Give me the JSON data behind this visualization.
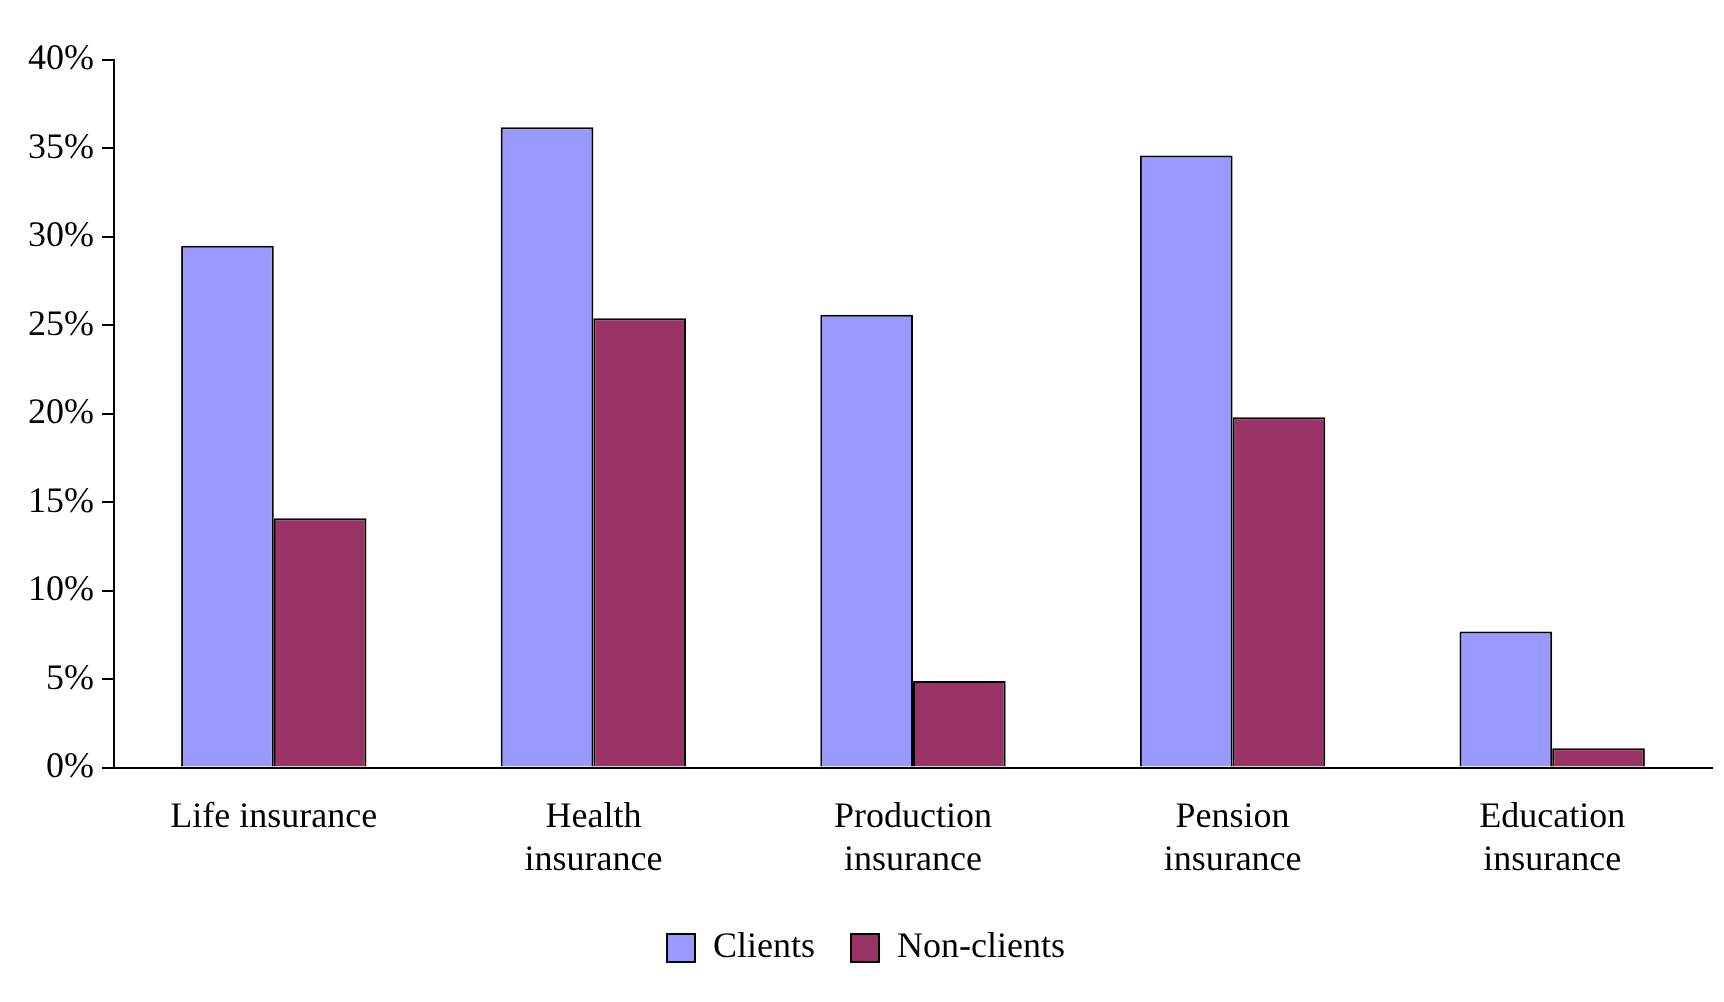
{
  "chart_data": {
    "type": "bar",
    "categories": [
      "Life insurance",
      "Health insurance",
      "Production insurance",
      "Pension insurance",
      "Education insurance"
    ],
    "series": [
      {
        "name": "Clients",
        "color": "#9999ff",
        "values": [
          29.5,
          36.2,
          25.6,
          34.6,
          7.7
        ]
      },
      {
        "name": "Non-clients",
        "color": "#993366",
        "values": [
          14.1,
          25.4,
          4.9,
          19.8,
          1.1
        ]
      }
    ],
    "ylim": [
      0,
      40
    ],
    "yticks": [
      {
        "value": 0,
        "label": "0%"
      },
      {
        "value": 5,
        "label": "5%"
      },
      {
        "value": 10,
        "label": "10%"
      },
      {
        "value": 15,
        "label": "15%"
      },
      {
        "value": 20,
        "label": "20%"
      },
      {
        "value": 25,
        "label": "25%"
      },
      {
        "value": 30,
        "label": "30%"
      },
      {
        "value": 35,
        "label": "35%"
      },
      {
        "value": 40,
        "label": "40%"
      }
    ],
    "grid": false,
    "legend": "bottom"
  }
}
